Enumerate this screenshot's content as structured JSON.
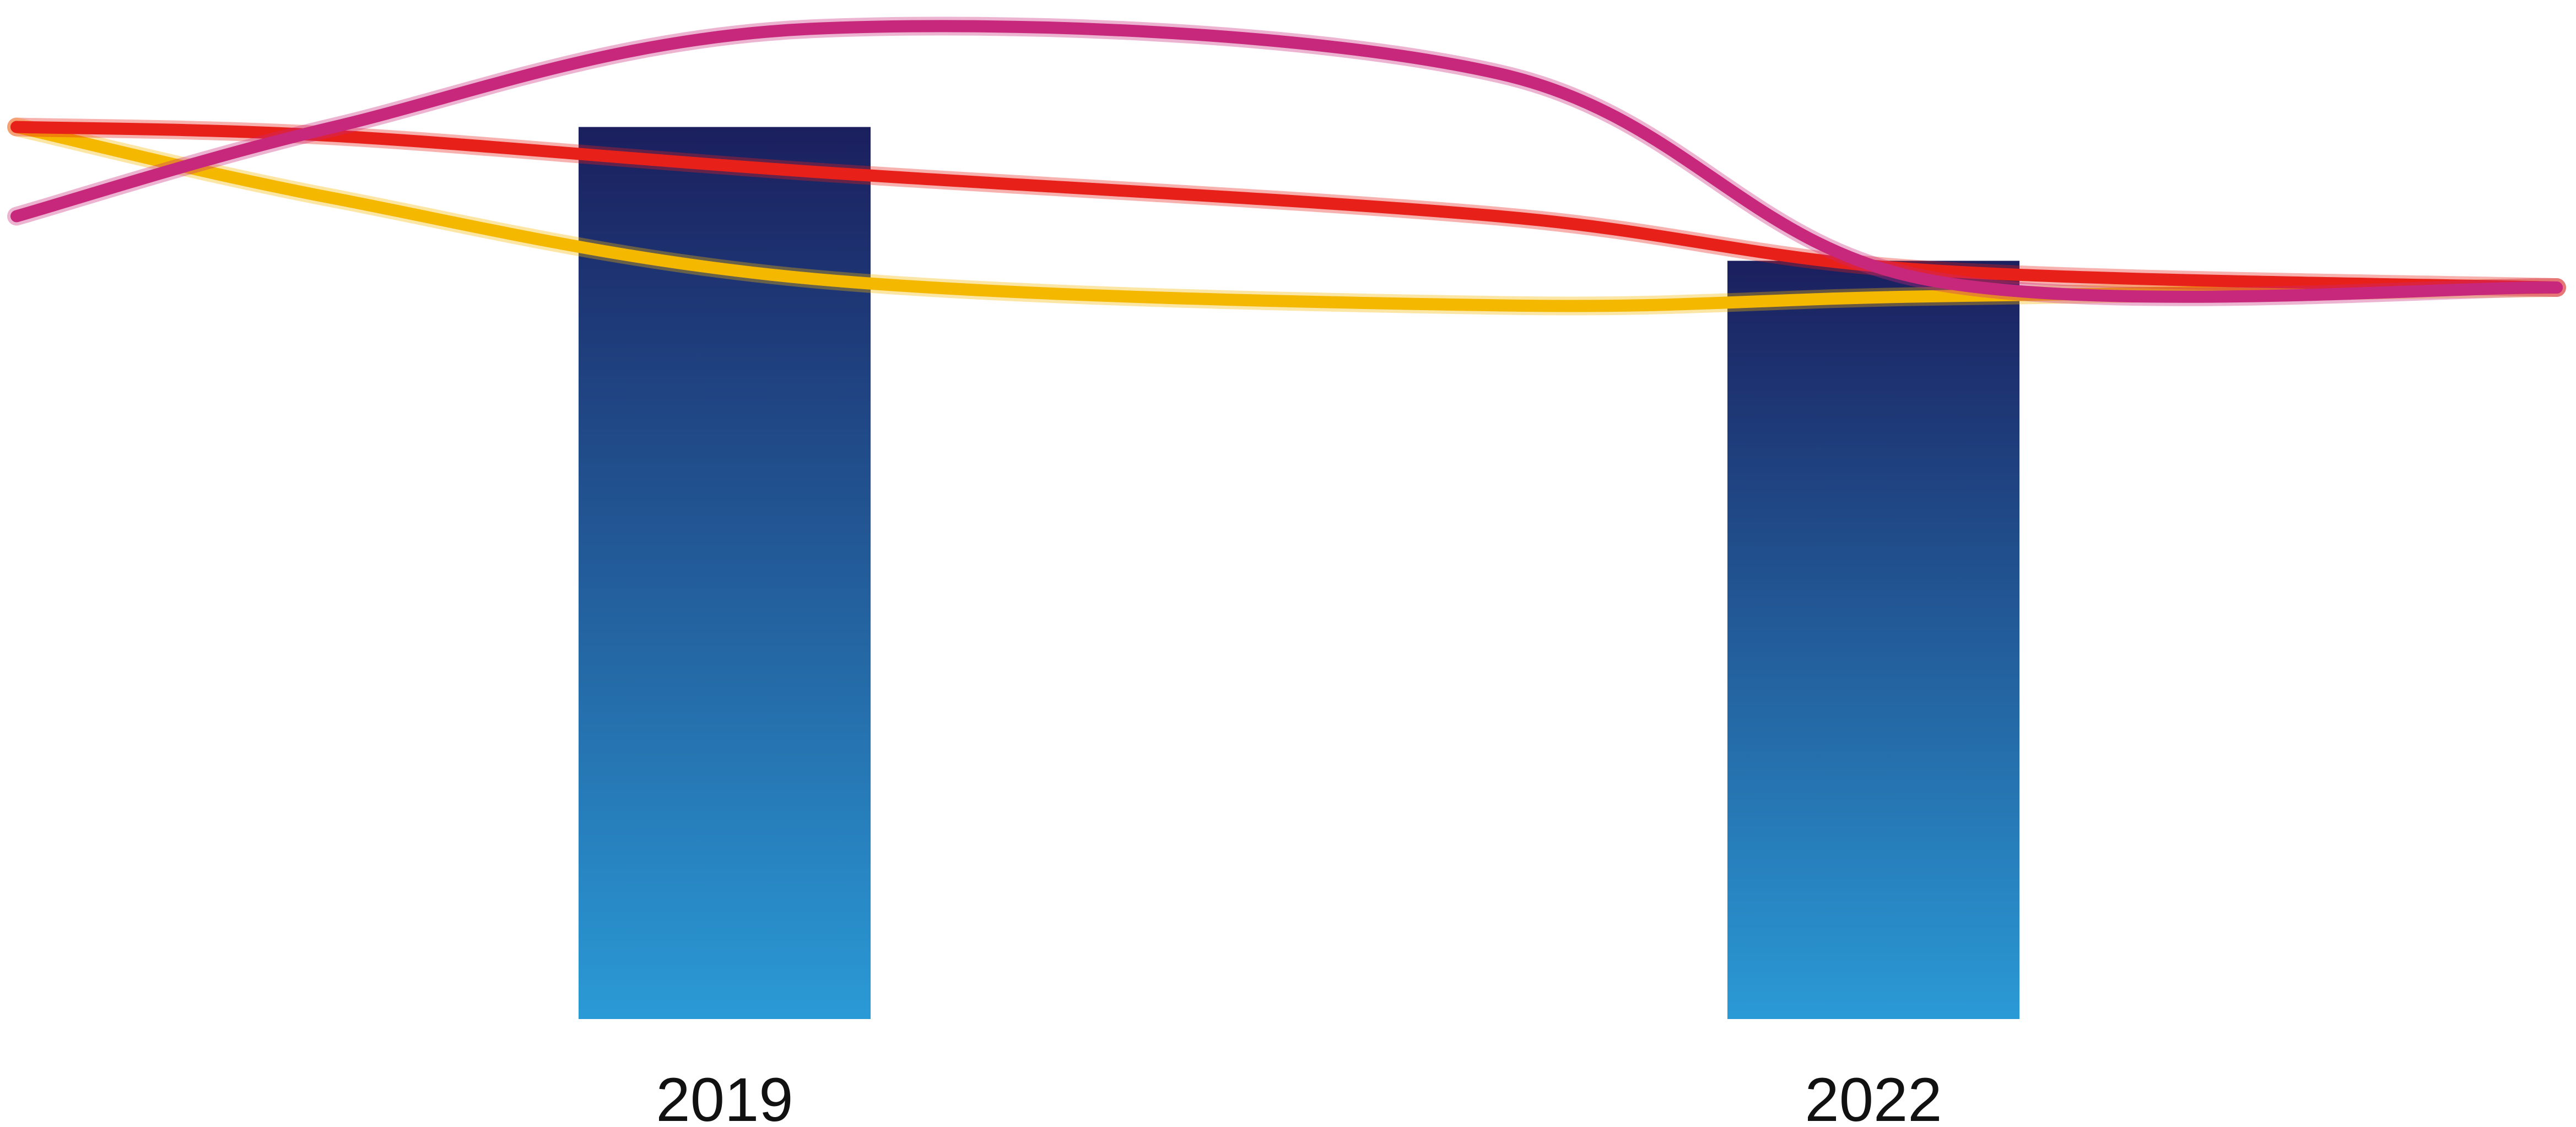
{
  "chart_data": {
    "type": "bar",
    "categories": [
      "2019",
      "2022"
    ],
    "values": [
      100,
      85
    ],
    "bar_gradient": {
      "top": "#1b1f5e",
      "bottom": "#2a9ad6"
    },
    "lines": [
      {
        "color": "#f5b800",
        "values": [
          100,
          92,
          83,
          80,
          81,
          82
        ]
      },
      {
        "color": "#e8201a",
        "values": [
          100,
          99,
          95,
          90,
          84,
          82
        ]
      },
      {
        "color": "#c8287c",
        "values": [
          90,
          100,
          111,
          106,
          83,
          82
        ]
      }
    ],
    "line_x": [
      2018.4,
      2019,
      2019.9,
      2021.2,
      2022,
      2023.2
    ],
    "xlim": [
      2018.4,
      2023.2
    ],
    "ylim": [
      0,
      113
    ],
    "grid": false,
    "legend": "none"
  }
}
